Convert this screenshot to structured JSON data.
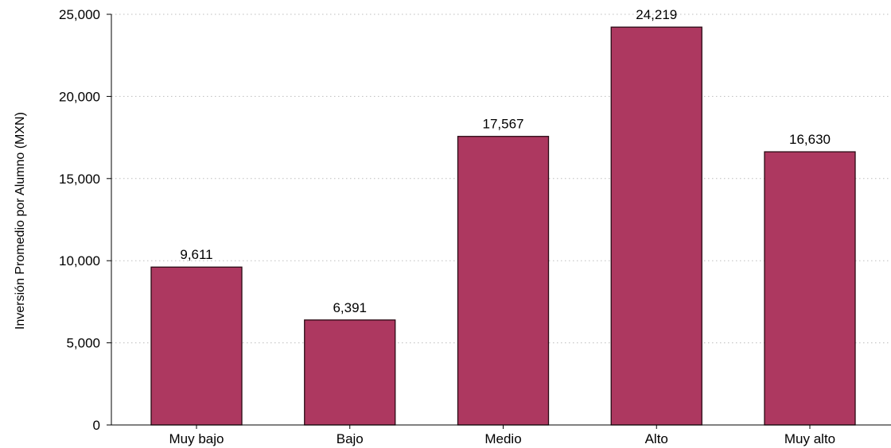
{
  "chart_data": {
    "type": "bar",
    "categories": [
      "Muy bajo",
      "Bajo",
      "Medio",
      "Alto",
      "Muy alto"
    ],
    "values": [
      9611,
      6391,
      17567,
      24219,
      16630
    ],
    "value_labels": [
      "9,611",
      "6,391",
      "17,567",
      "24,219",
      "16,630"
    ],
    "ylabel": "Inversión Promedio por Alumno (MXN)",
    "xlabel": "",
    "ylim": [
      0,
      25000
    ],
    "yticks": [
      0,
      5000,
      10000,
      15000,
      20000,
      25000
    ],
    "ytick_labels": [
      "0",
      "5,000",
      "10,000",
      "15,000",
      "20,000",
      "25,000"
    ],
    "grid": "horizontal dotted",
    "colors": {
      "bar_fill": "#ad3860",
      "bar_edge": "#2a0a14",
      "grid": "#bdbdbd",
      "axis": "#000000"
    }
  }
}
